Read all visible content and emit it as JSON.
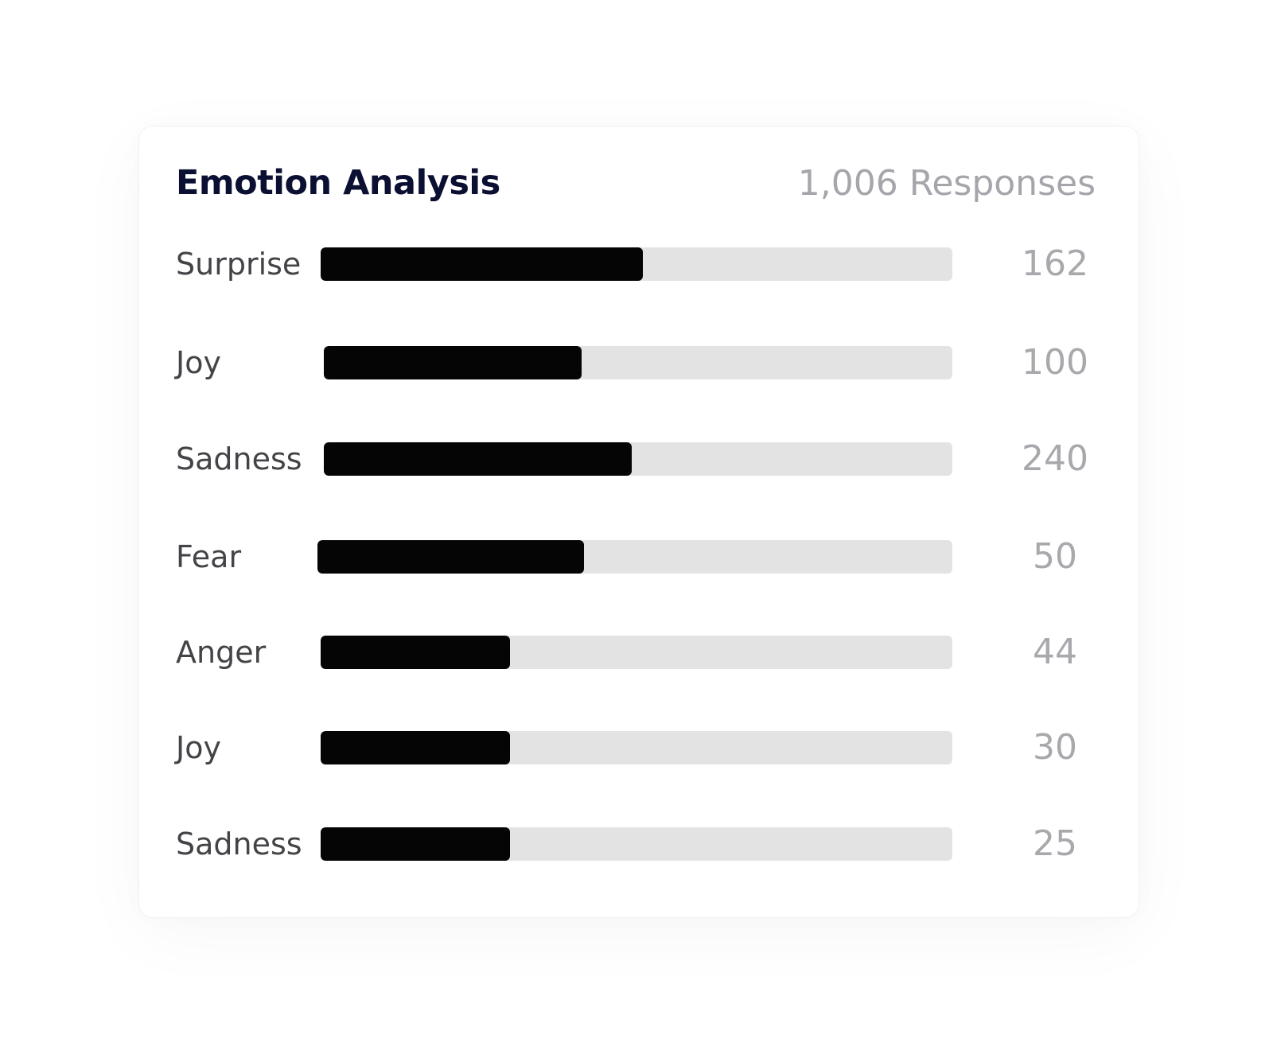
{
  "card": {
    "title": "Emotion Analysis",
    "responses": "1,006 Responses"
  },
  "colors": {
    "title": "#0b1033",
    "bar_fill": "#050505",
    "bar_track": "#e3e3e3",
    "label": "#444448",
    "value": "#a8a8ad"
  },
  "chart_data": {
    "type": "bar",
    "orientation": "horizontal",
    "title": "Emotion Analysis",
    "categories": [
      "Surprise",
      "Joy",
      "Sadness",
      "Fear",
      "Anger",
      "Joy",
      "Sadness"
    ],
    "values": [
      162,
      100,
      240,
      50,
      44,
      30,
      25
    ],
    "value_labels": [
      "162",
      "100",
      "240",
      "50",
      "44",
      "30",
      "25"
    ],
    "bar_fill_fraction": [
      0.51,
      0.41,
      0.49,
      0.42,
      0.3,
      0.3,
      0.3
    ],
    "grid": false,
    "legend": "none"
  }
}
